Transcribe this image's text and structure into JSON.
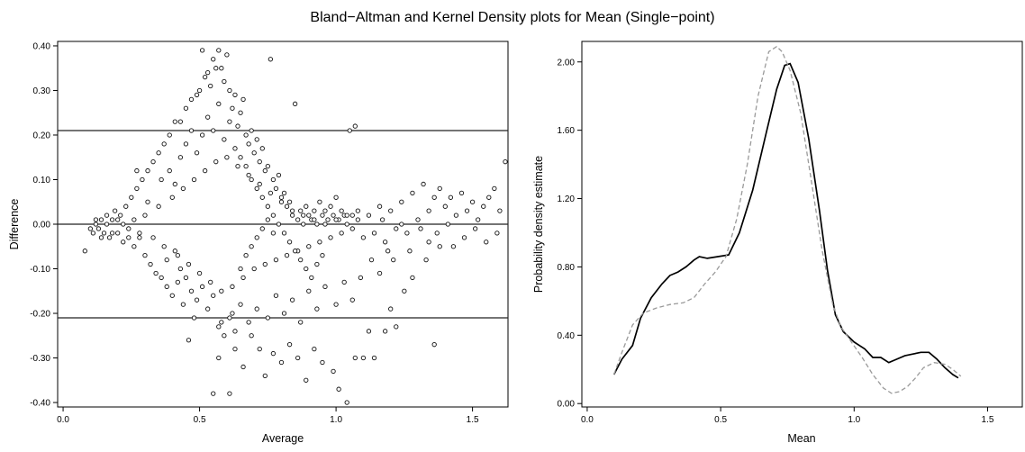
{
  "title": "Bland−Altman and Kernel Density plots for Mean (Single−point)",
  "chart_data": [
    {
      "type": "scatter",
      "xlabel": "Average",
      "ylabel": "Difference",
      "xlim": [
        -0.02,
        1.63
      ],
      "ylim": [
        -0.41,
        0.41
      ],
      "xticks": [
        "0.0",
        "0.5",
        "1.0",
        "1.5"
      ],
      "yticks": [
        "-0.40",
        "-0.30",
        "-0.20",
        "-0.10",
        "0.00",
        "0.10",
        "0.20",
        "0.30",
        "0.40"
      ],
      "reference_lines": [
        0.21,
        0.0,
        -0.21
      ],
      "marker": "open-circle",
      "grid": false,
      "points": [
        [
          0.08,
          -0.06
        ],
        [
          0.1,
          -0.01
        ],
        [
          0.11,
          -0.02
        ],
        [
          0.12,
          0.0
        ],
        [
          0.13,
          -0.01
        ],
        [
          0.14,
          0.01
        ],
        [
          0.15,
          -0.02
        ],
        [
          0.16,
          0.02
        ],
        [
          0.17,
          -0.03
        ],
        [
          0.18,
          0.01
        ],
        [
          0.19,
          0.03
        ],
        [
          0.2,
          -0.02
        ],
        [
          0.21,
          0.02
        ],
        [
          0.22,
          -0.04
        ],
        [
          0.23,
          0.04
        ],
        [
          0.24,
          -0.01
        ],
        [
          0.25,
          0.06
        ],
        [
          0.26,
          -0.05
        ],
        [
          0.27,
          0.08
        ],
        [
          0.28,
          -0.03
        ],
        [
          0.29,
          0.1
        ],
        [
          0.3,
          -0.07
        ],
        [
          0.31,
          0.12
        ],
        [
          0.32,
          -0.09
        ],
        [
          0.33,
          0.14
        ],
        [
          0.34,
          -0.11
        ],
        [
          0.35,
          0.16
        ],
        [
          0.36,
          -0.12
        ],
        [
          0.37,
          0.18
        ],
        [
          0.38,
          -0.14
        ],
        [
          0.39,
          0.2
        ],
        [
          0.4,
          -0.16
        ],
        [
          0.41,
          0.23
        ],
        [
          0.42,
          -0.13
        ],
        [
          0.43,
          0.23
        ],
        [
          0.44,
          -0.18
        ],
        [
          0.45,
          0.26
        ],
        [
          0.46,
          -0.26
        ],
        [
          0.47,
          0.28
        ],
        [
          0.48,
          -0.21
        ],
        [
          0.49,
          0.29
        ],
        [
          0.5,
          0.3
        ],
        [
          0.51,
          0.39
        ],
        [
          0.52,
          0.33
        ],
        [
          0.53,
          0.34
        ],
        [
          0.54,
          0.31
        ],
        [
          0.55,
          0.37
        ],
        [
          0.56,
          0.35
        ],
        [
          0.57,
          0.39
        ],
        [
          0.58,
          0.35
        ],
        [
          0.59,
          0.32
        ],
        [
          0.6,
          0.38
        ],
        [
          0.61,
          0.3
        ],
        [
          0.62,
          0.26
        ],
        [
          0.63,
          0.29
        ],
        [
          0.64,
          0.22
        ],
        [
          0.65,
          0.25
        ],
        [
          0.66,
          0.28
        ],
        [
          0.67,
          0.2
        ],
        [
          0.68,
          0.18
        ],
        [
          0.69,
          0.21
        ],
        [
          0.7,
          0.16
        ],
        [
          0.71,
          0.19
        ],
        [
          0.72,
          0.14
        ],
        [
          0.73,
          0.17
        ],
        [
          0.74,
          0.12
        ],
        [
          0.75,
          0.13
        ],
        [
          0.76,
          0.37
        ],
        [
          0.77,
          0.1
        ],
        [
          0.78,
          0.08
        ],
        [
          0.79,
          0.11
        ],
        [
          0.8,
          0.06
        ],
        [
          0.81,
          0.07
        ],
        [
          0.82,
          0.04
        ],
        [
          0.83,
          0.05
        ],
        [
          0.84,
          0.02
        ],
        [
          0.85,
          0.27
        ],
        [
          0.86,
          0.01
        ],
        [
          0.87,
          0.03
        ],
        [
          0.88,
          0.0
        ],
        [
          0.89,
          0.04
        ],
        [
          0.9,
          0.02
        ],
        [
          0.91,
          0.01
        ],
        [
          0.92,
          0.03
        ],
        [
          0.93,
          0.0
        ],
        [
          0.94,
          0.05
        ],
        [
          0.95,
          0.02
        ],
        [
          0.96,
          0.03
        ],
        [
          0.97,
          0.01
        ],
        [
          0.98,
          0.04
        ],
        [
          0.99,
          0.02
        ],
        [
          1.0,
          0.06
        ],
        [
          1.01,
          0.01
        ],
        [
          1.02,
          0.03
        ],
        [
          1.03,
          0.02
        ],
        [
          1.04,
          0.0
        ],
        [
          1.05,
          0.21
        ],
        [
          1.06,
          0.02
        ],
        [
          1.07,
          0.22
        ],
        [
          1.08,
          0.01
        ],
        [
          0.55,
          -0.38
        ],
        [
          0.61,
          -0.38
        ],
        [
          0.57,
          -0.3
        ],
        [
          0.63,
          -0.28
        ],
        [
          0.66,
          -0.32
        ],
        [
          0.69,
          -0.25
        ],
        [
          0.72,
          -0.28
        ],
        [
          0.74,
          -0.34
        ],
        [
          0.77,
          -0.29
        ],
        [
          0.8,
          -0.31
        ],
        [
          0.83,
          -0.27
        ],
        [
          0.86,
          -0.3
        ],
        [
          0.89,
          -0.35
        ],
        [
          0.92,
          -0.28
        ],
        [
          0.95,
          -0.31
        ],
        [
          0.99,
          -0.33
        ],
        [
          1.01,
          -0.37
        ],
        [
          1.04,
          -0.4
        ],
        [
          1.07,
          -0.3
        ],
        [
          1.1,
          -0.3
        ],
        [
          1.12,
          -0.24
        ],
        [
          1.14,
          -0.3
        ],
        [
          1.18,
          -0.24
        ],
        [
          1.2,
          -0.19
        ],
        [
          1.22,
          -0.23
        ],
        [
          1.25,
          -0.15
        ],
        [
          1.28,
          -0.12
        ],
        [
          1.33,
          -0.08
        ],
        [
          1.36,
          -0.27
        ],
        [
          1.38,
          -0.05
        ],
        [
          0.58,
          -0.22
        ],
        [
          0.62,
          -0.2
        ],
        [
          0.65,
          -0.18
        ],
        [
          0.68,
          -0.22
        ],
        [
          0.71,
          -0.19
        ],
        [
          0.75,
          -0.21
        ],
        [
          0.78,
          -0.16
        ],
        [
          0.81,
          -0.2
        ],
        [
          0.84,
          -0.17
        ],
        [
          0.87,
          -0.22
        ],
        [
          0.9,
          -0.15
        ],
        [
          0.93,
          -0.19
        ],
        [
          0.96,
          -0.14
        ],
        [
          1.0,
          -0.18
        ],
        [
          1.03,
          -0.13
        ],
        [
          1.06,
          -0.17
        ],
        [
          1.09,
          -0.12
        ],
        [
          1.13,
          -0.08
        ],
        [
          1.16,
          -0.11
        ],
        [
          1.19,
          -0.06
        ],
        [
          0.28,
          -0.02
        ],
        [
          0.3,
          0.02
        ],
        [
          0.33,
          -0.03
        ],
        [
          0.35,
          0.04
        ],
        [
          0.37,
          -0.05
        ],
        [
          0.4,
          0.06
        ],
        [
          0.42,
          -0.07
        ],
        [
          0.44,
          0.08
        ],
        [
          0.46,
          -0.09
        ],
        [
          0.48,
          0.1
        ],
        [
          0.5,
          -0.11
        ],
        [
          0.52,
          0.12
        ],
        [
          0.54,
          -0.13
        ],
        [
          0.56,
          0.14
        ],
        [
          0.58,
          -0.15
        ],
        [
          0.6,
          0.15
        ],
        [
          0.62,
          -0.14
        ],
        [
          0.64,
          0.13
        ],
        [
          0.66,
          -0.12
        ],
        [
          0.68,
          0.11
        ],
        [
          0.7,
          -0.1
        ],
        [
          0.72,
          0.09
        ],
        [
          0.74,
          -0.09
        ],
        [
          0.76,
          0.07
        ],
        [
          0.78,
          -0.08
        ],
        [
          0.8,
          0.05
        ],
        [
          0.82,
          -0.07
        ],
        [
          0.84,
          0.03
        ],
        [
          0.86,
          -0.06
        ],
        [
          0.88,
          0.02
        ],
        [
          0.9,
          -0.05
        ],
        [
          0.92,
          0.01
        ],
        [
          0.94,
          -0.04
        ],
        [
          0.96,
          0.0
        ],
        [
          0.98,
          -0.03
        ],
        [
          1.0,
          0.01
        ],
        [
          1.02,
          -0.02
        ],
        [
          1.04,
          0.02
        ],
        [
          1.06,
          -0.01
        ],
        [
          1.08,
          0.03
        ],
        [
          1.1,
          -0.03
        ],
        [
          1.12,
          0.02
        ],
        [
          1.14,
          -0.02
        ],
        [
          1.16,
          0.04
        ],
        [
          1.18,
          -0.04
        ],
        [
          1.2,
          0.03
        ],
        [
          1.22,
          -0.01
        ],
        [
          1.24,
          0.05
        ],
        [
          1.26,
          -0.02
        ],
        [
          1.28,
          0.07
        ],
        [
          1.3,
          0.01
        ],
        [
          1.32,
          0.09
        ],
        [
          1.34,
          0.03
        ],
        [
          1.36,
          0.06
        ],
        [
          1.38,
          0.08
        ],
        [
          1.4,
          0.04
        ],
        [
          1.42,
          0.06
        ],
        [
          1.44,
          0.02
        ],
        [
          1.46,
          0.07
        ],
        [
          1.48,
          0.03
        ],
        [
          1.5,
          0.05
        ],
        [
          1.52,
          0.01
        ],
        [
          1.54,
          0.04
        ],
        [
          1.56,
          0.06
        ],
        [
          1.58,
          0.08
        ],
        [
          1.6,
          0.03
        ],
        [
          1.62,
          0.14
        ],
        [
          1.59,
          -0.02
        ],
        [
          1.55,
          -0.04
        ],
        [
          1.51,
          -0.01
        ],
        [
          1.47,
          -0.03
        ],
        [
          1.43,
          -0.05
        ],
        [
          1.41,
          0.0
        ],
        [
          1.37,
          -0.02
        ],
        [
          1.34,
          -0.04
        ],
        [
          1.31,
          -0.01
        ],
        [
          1.27,
          -0.06
        ],
        [
          1.24,
          0.0
        ],
        [
          1.21,
          -0.08
        ],
        [
          1.17,
          0.01
        ],
        [
          0.36,
          0.1
        ],
        [
          0.39,
          0.12
        ],
        [
          0.41,
          0.09
        ],
        [
          0.43,
          0.15
        ],
        [
          0.45,
          0.18
        ],
        [
          0.47,
          0.21
        ],
        [
          0.49,
          0.16
        ],
        [
          0.51,
          0.2
        ],
        [
          0.53,
          0.24
        ],
        [
          0.55,
          0.21
        ],
        [
          0.57,
          0.27
        ],
        [
          0.59,
          0.19
        ],
        [
          0.61,
          0.23
        ],
        [
          0.63,
          0.17
        ],
        [
          0.65,
          0.15
        ],
        [
          0.67,
          0.13
        ],
        [
          0.69,
          0.1
        ],
        [
          0.71,
          0.08
        ],
        [
          0.73,
          0.06
        ],
        [
          0.75,
          0.04
        ],
        [
          0.77,
          0.02
        ],
        [
          0.79,
          0.0
        ],
        [
          0.81,
          -0.02
        ],
        [
          0.83,
          -0.04
        ],
        [
          0.85,
          -0.06
        ],
        [
          0.87,
          -0.08
        ],
        [
          0.89,
          -0.1
        ],
        [
          0.91,
          -0.12
        ],
        [
          0.93,
          -0.09
        ],
        [
          0.95,
          -0.07
        ],
        [
          0.38,
          -0.08
        ],
        [
          0.41,
          -0.06
        ],
        [
          0.43,
          -0.1
        ],
        [
          0.45,
          -0.12
        ],
        [
          0.47,
          -0.15
        ],
        [
          0.49,
          -0.17
        ],
        [
          0.51,
          -0.14
        ],
        [
          0.53,
          -0.19
        ],
        [
          0.55,
          -0.16
        ],
        [
          0.57,
          -0.23
        ],
        [
          0.59,
          -0.25
        ],
        [
          0.61,
          -0.21
        ],
        [
          0.63,
          -0.24
        ],
        [
          0.65,
          -0.1
        ],
        [
          0.67,
          -0.07
        ],
        [
          0.69,
          -0.05
        ],
        [
          0.71,
          -0.03
        ],
        [
          0.73,
          -0.01
        ],
        [
          0.75,
          0.01
        ],
        [
          0.77,
          -0.02
        ],
        [
          0.26,
          0.01
        ],
        [
          0.24,
          -0.03
        ],
        [
          0.22,
          0.0
        ],
        [
          0.2,
          0.01
        ],
        [
          0.18,
          -0.02
        ],
        [
          0.16,
          0.0
        ],
        [
          0.14,
          -0.03
        ],
        [
          0.12,
          0.01
        ],
        [
          0.27,
          0.12
        ],
        [
          0.31,
          0.05
        ]
      ]
    },
    {
      "type": "line",
      "xlabel": "Mean",
      "ylabel": "Probability density estimate",
      "xlim": [
        -0.02,
        1.63
      ],
      "ylim": [
        -0.02,
        2.12
      ],
      "xticks": [
        "0.0",
        "0.5",
        "1.0",
        "1.5"
      ],
      "yticks": [
        "0.00",
        "0.40",
        "0.80",
        "1.20",
        "1.60",
        "2.00"
      ],
      "grid": false,
      "series": [
        {
          "style": "solid",
          "color": "#000000",
          "x": [
            0.1,
            0.13,
            0.17,
            0.2,
            0.24,
            0.28,
            0.31,
            0.34,
            0.37,
            0.4,
            0.42,
            0.45,
            0.49,
            0.53,
            0.57,
            0.62,
            0.67,
            0.71,
            0.74,
            0.76,
            0.79,
            0.83,
            0.87,
            0.9,
            0.93,
            0.96,
            1.0,
            1.04,
            1.07,
            1.1,
            1.13,
            1.16,
            1.19,
            1.22,
            1.25,
            1.28,
            1.31,
            1.34,
            1.37,
            1.39
          ],
          "y": [
            0.17,
            0.26,
            0.34,
            0.5,
            0.62,
            0.7,
            0.75,
            0.77,
            0.8,
            0.84,
            0.86,
            0.85,
            0.86,
            0.87,
            1.0,
            1.25,
            1.58,
            1.84,
            1.98,
            1.99,
            1.88,
            1.55,
            1.13,
            0.78,
            0.52,
            0.42,
            0.36,
            0.32,
            0.27,
            0.27,
            0.24,
            0.26,
            0.28,
            0.29,
            0.3,
            0.3,
            0.26,
            0.21,
            0.17,
            0.15
          ]
        },
        {
          "style": "dashed",
          "color": "#9a9a9a",
          "x": [
            0.1,
            0.13,
            0.17,
            0.21,
            0.26,
            0.31,
            0.36,
            0.4,
            0.44,
            0.48,
            0.52,
            0.56,
            0.6,
            0.64,
            0.68,
            0.71,
            0.73,
            0.76,
            0.8,
            0.84,
            0.88,
            0.92,
            0.95,
            0.99,
            1.03,
            1.07,
            1.11,
            1.14,
            1.17,
            1.2,
            1.23,
            1.26,
            1.3,
            1.34,
            1.37,
            1.4
          ],
          "y": [
            0.17,
            0.3,
            0.46,
            0.53,
            0.56,
            0.58,
            0.59,
            0.62,
            0.7,
            0.77,
            0.86,
            1.08,
            1.4,
            1.8,
            2.06,
            2.09,
            2.06,
            1.95,
            1.7,
            1.3,
            0.9,
            0.58,
            0.45,
            0.36,
            0.27,
            0.17,
            0.09,
            0.06,
            0.07,
            0.1,
            0.15,
            0.21,
            0.24,
            0.23,
            0.2,
            0.16
          ]
        }
      ]
    }
  ]
}
